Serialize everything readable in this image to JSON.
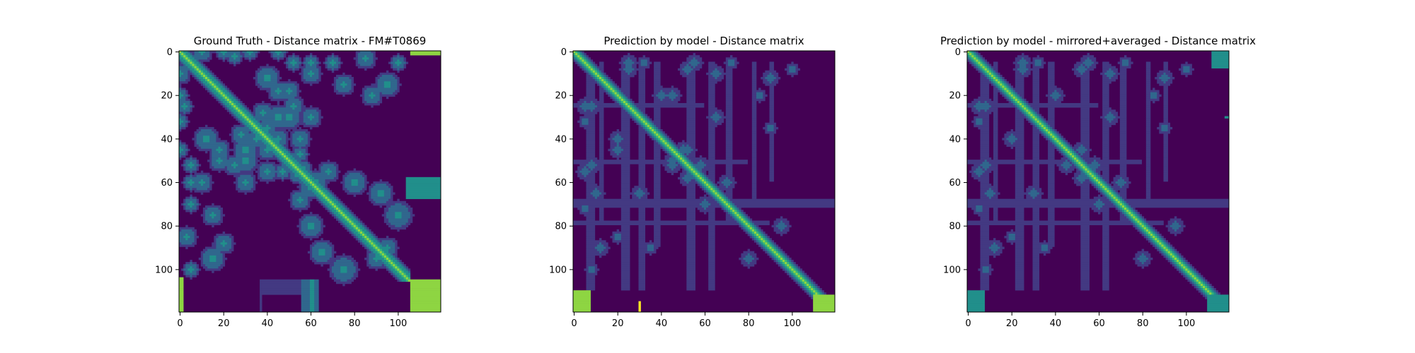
{
  "palette": {
    "background": "#440154",
    "levels": [
      "#440154",
      "#433982",
      "#30678d",
      "#218f8b",
      "#36b677",
      "#8ed542",
      "#fde725"
    ],
    "cells_per_side": 120
  },
  "chart_data": [
    {
      "type": "heatmap",
      "title": "Ground Truth - Distance matrix - FM#T0869",
      "xlabel": "",
      "ylabel": "",
      "xlim": [
        0,
        120
      ],
      "ylim": [
        120,
        0
      ],
      "xticks": [
        0,
        20,
        40,
        60,
        80,
        100
      ],
      "yticks": [
        0,
        20,
        40,
        60,
        80,
        100
      ],
      "grid": false,
      "diagonal": {
        "start": 0,
        "end": 106,
        "value": 5,
        "falloff": 1.2
      },
      "contact_blobs": [
        [
          10,
          0,
          5,
          3
        ],
        [
          20,
          0,
          4,
          3
        ],
        [
          25,
          2,
          4,
          3
        ],
        [
          32,
          0,
          4,
          3
        ],
        [
          45,
          0,
          4,
          3
        ],
        [
          52,
          5,
          4,
          3
        ],
        [
          60,
          10,
          5,
          3
        ],
        [
          75,
          15,
          5,
          3
        ],
        [
          88,
          20,
          5,
          3
        ],
        [
          100,
          5,
          4,
          3
        ],
        [
          12,
          40,
          6,
          3
        ],
        [
          18,
          50,
          5,
          3
        ],
        [
          25,
          52,
          5,
          3
        ],
        [
          30,
          45,
          6,
          3
        ],
        [
          35,
          40,
          5,
          3
        ],
        [
          55,
          55,
          6,
          4
        ],
        [
          62,
          60,
          6,
          3
        ],
        [
          68,
          55,
          5,
          3
        ],
        [
          80,
          60,
          5,
          3
        ],
        [
          50,
          30,
          6,
          3
        ],
        [
          45,
          40,
          5,
          3
        ],
        [
          38,
          28,
          5,
          3
        ],
        [
          45,
          18,
          5,
          3
        ],
        [
          30,
          60,
          5,
          3
        ],
        [
          60,
          80,
          6,
          3
        ],
        [
          65,
          92,
          6,
          3
        ],
        [
          75,
          100,
          7,
          3
        ],
        [
          90,
          95,
          5,
          3
        ],
        [
          5,
          60,
          4,
          3
        ],
        [
          5,
          70,
          4,
          3
        ],
        [
          3,
          85,
          5,
          3
        ],
        [
          5,
          100,
          4,
          3
        ],
        [
          15,
          95,
          6,
          3
        ],
        [
          40,
          55,
          5,
          3
        ],
        [
          47,
          55,
          4,
          3
        ]
      ],
      "vertical_bands": [
        [
          56,
          105,
          120,
          64,
          2
        ],
        [
          60,
          105,
          120,
          62,
          3
        ],
        [
          62,
          105,
          120,
          58,
          2
        ],
        [
          38,
          105,
          112,
          58,
          1
        ],
        [
          37,
          105,
          120,
          38,
          1
        ],
        [
          0,
          104,
          120,
          2,
          5
        ]
      ],
      "horizontal_bands": [
        [
          104,
          108,
          120,
          58,
          68,
          3
        ],
        [
          104,
          108,
          120,
          62,
          65,
          2
        ],
        [
          104,
          112,
          120,
          58,
          68,
          1
        ]
      ],
      "corner_blocks": [
        [
          106,
          105,
          120,
          120,
          5
        ],
        [
          106,
          0,
          120,
          2,
          5
        ]
      ]
    },
    {
      "type": "heatmap",
      "title": "Prediction by model - Distance matrix",
      "xlabel": "",
      "ylabel": "",
      "xlim": [
        0,
        120
      ],
      "ylim": [
        120,
        0
      ],
      "xticks": [
        0,
        20,
        40,
        60,
        80,
        100
      ],
      "yticks": [
        0,
        20,
        40,
        60,
        80,
        100
      ],
      "grid": false,
      "diagonal": {
        "start": 0,
        "end": 120,
        "value": 5,
        "falloff": 1.0
      },
      "contact_blobs": [
        [
          25,
          5,
          4,
          2
        ],
        [
          32,
          5,
          3,
          2
        ],
        [
          55,
          5,
          4,
          2
        ],
        [
          72,
          5,
          3,
          2
        ],
        [
          90,
          12,
          4,
          2
        ],
        [
          8,
          25,
          4,
          2
        ],
        [
          20,
          40,
          4,
          2
        ],
        [
          45,
          52,
          4,
          2
        ],
        [
          50,
          45,
          4,
          2
        ],
        [
          8,
          52,
          4,
          2
        ],
        [
          10,
          65,
          4,
          2
        ],
        [
          30,
          65,
          4,
          2
        ],
        [
          20,
          85,
          3,
          2
        ],
        [
          35,
          90,
          3,
          2
        ],
        [
          8,
          100,
          3,
          2
        ],
        [
          45,
          20,
          4,
          2
        ],
        [
          52,
          58,
          4,
          2
        ],
        [
          60,
          70,
          4,
          2
        ],
        [
          80,
          95,
          4,
          2
        ]
      ],
      "vertical_bands": [
        [
          6,
          5,
          110,
          10,
          1
        ],
        [
          12,
          5,
          80,
          14,
          1
        ],
        [
          22,
          5,
          110,
          26,
          1
        ],
        [
          30,
          5,
          110,
          33,
          1
        ],
        [
          37,
          5,
          90,
          40,
          1
        ],
        [
          52,
          5,
          110,
          56,
          1
        ],
        [
          62,
          5,
          110,
          65,
          1
        ],
        [
          70,
          5,
          80,
          73,
          1
        ],
        [
          82,
          5,
          70,
          84,
          1
        ],
        [
          90,
          5,
          60,
          92,
          1
        ]
      ],
      "horizontal_bands": [
        [
          0,
          48,
          120,
          68,
          72,
          1
        ],
        [
          0,
          35,
          80,
          50,
          52,
          1
        ],
        [
          0,
          25,
          60,
          24,
          26,
          1
        ],
        [
          0,
          12,
          90,
          78,
          80,
          1
        ]
      ],
      "corner_blocks": [
        [
          110,
          112,
          120,
          120,
          5
        ],
        [
          0,
          110,
          8,
          120,
          5
        ],
        [
          30,
          115,
          31,
          120,
          6
        ]
      ]
    },
    {
      "type": "heatmap",
      "title": "Prediction by model - mirrored+averaged - Distance matrix",
      "xlabel": "",
      "ylabel": "",
      "xlim": [
        0,
        120
      ],
      "ylim": [
        120,
        0
      ],
      "xticks": [
        0,
        20,
        40,
        60,
        80,
        100
      ],
      "yticks": [
        0,
        20,
        40,
        60,
        80,
        100
      ],
      "grid": false,
      "diagonal": {
        "start": 0,
        "end": 120,
        "value": 5,
        "falloff": 1.0
      },
      "symmetric": true,
      "contact_blobs": [
        [
          25,
          5,
          4,
          2
        ],
        [
          32,
          5,
          3,
          2
        ],
        [
          55,
          5,
          4,
          2
        ],
        [
          72,
          5,
          3,
          2
        ],
        [
          90,
          12,
          4,
          2
        ],
        [
          8,
          25,
          4,
          2
        ],
        [
          20,
          40,
          4,
          2
        ],
        [
          45,
          52,
          4,
          2
        ],
        [
          8,
          52,
          4,
          2
        ],
        [
          10,
          65,
          4,
          2
        ],
        [
          30,
          65,
          4,
          2
        ],
        [
          20,
          85,
          3,
          2
        ],
        [
          35,
          90,
          3,
          2
        ],
        [
          8,
          100,
          3,
          2
        ],
        [
          52,
          58,
          4,
          2
        ],
        [
          60,
          70,
          4,
          2
        ],
        [
          80,
          95,
          4,
          2
        ]
      ],
      "vertical_bands": [
        [
          6,
          5,
          110,
          10,
          1
        ],
        [
          12,
          5,
          80,
          14,
          1
        ],
        [
          22,
          5,
          110,
          26,
          1
        ],
        [
          30,
          5,
          110,
          33,
          1
        ],
        [
          37,
          5,
          90,
          40,
          1
        ],
        [
          52,
          5,
          110,
          56,
          1
        ],
        [
          62,
          5,
          110,
          65,
          1
        ],
        [
          70,
          5,
          80,
          73,
          1
        ],
        [
          82,
          5,
          70,
          84,
          1
        ],
        [
          90,
          5,
          60,
          92,
          1
        ]
      ],
      "horizontal_bands": [
        [
          0,
          48,
          120,
          68,
          72,
          1
        ],
        [
          0,
          35,
          80,
          50,
          52,
          1
        ],
        [
          0,
          25,
          60,
          24,
          26,
          1
        ],
        [
          0,
          12,
          90,
          78,
          80,
          1
        ]
      ],
      "corner_blocks": [
        [
          110,
          112,
          120,
          120,
          3
        ],
        [
          0,
          110,
          8,
          120,
          3
        ],
        [
          112,
          0,
          120,
          8,
          3
        ],
        [
          118,
          30,
          120,
          31,
          3
        ]
      ]
    }
  ]
}
